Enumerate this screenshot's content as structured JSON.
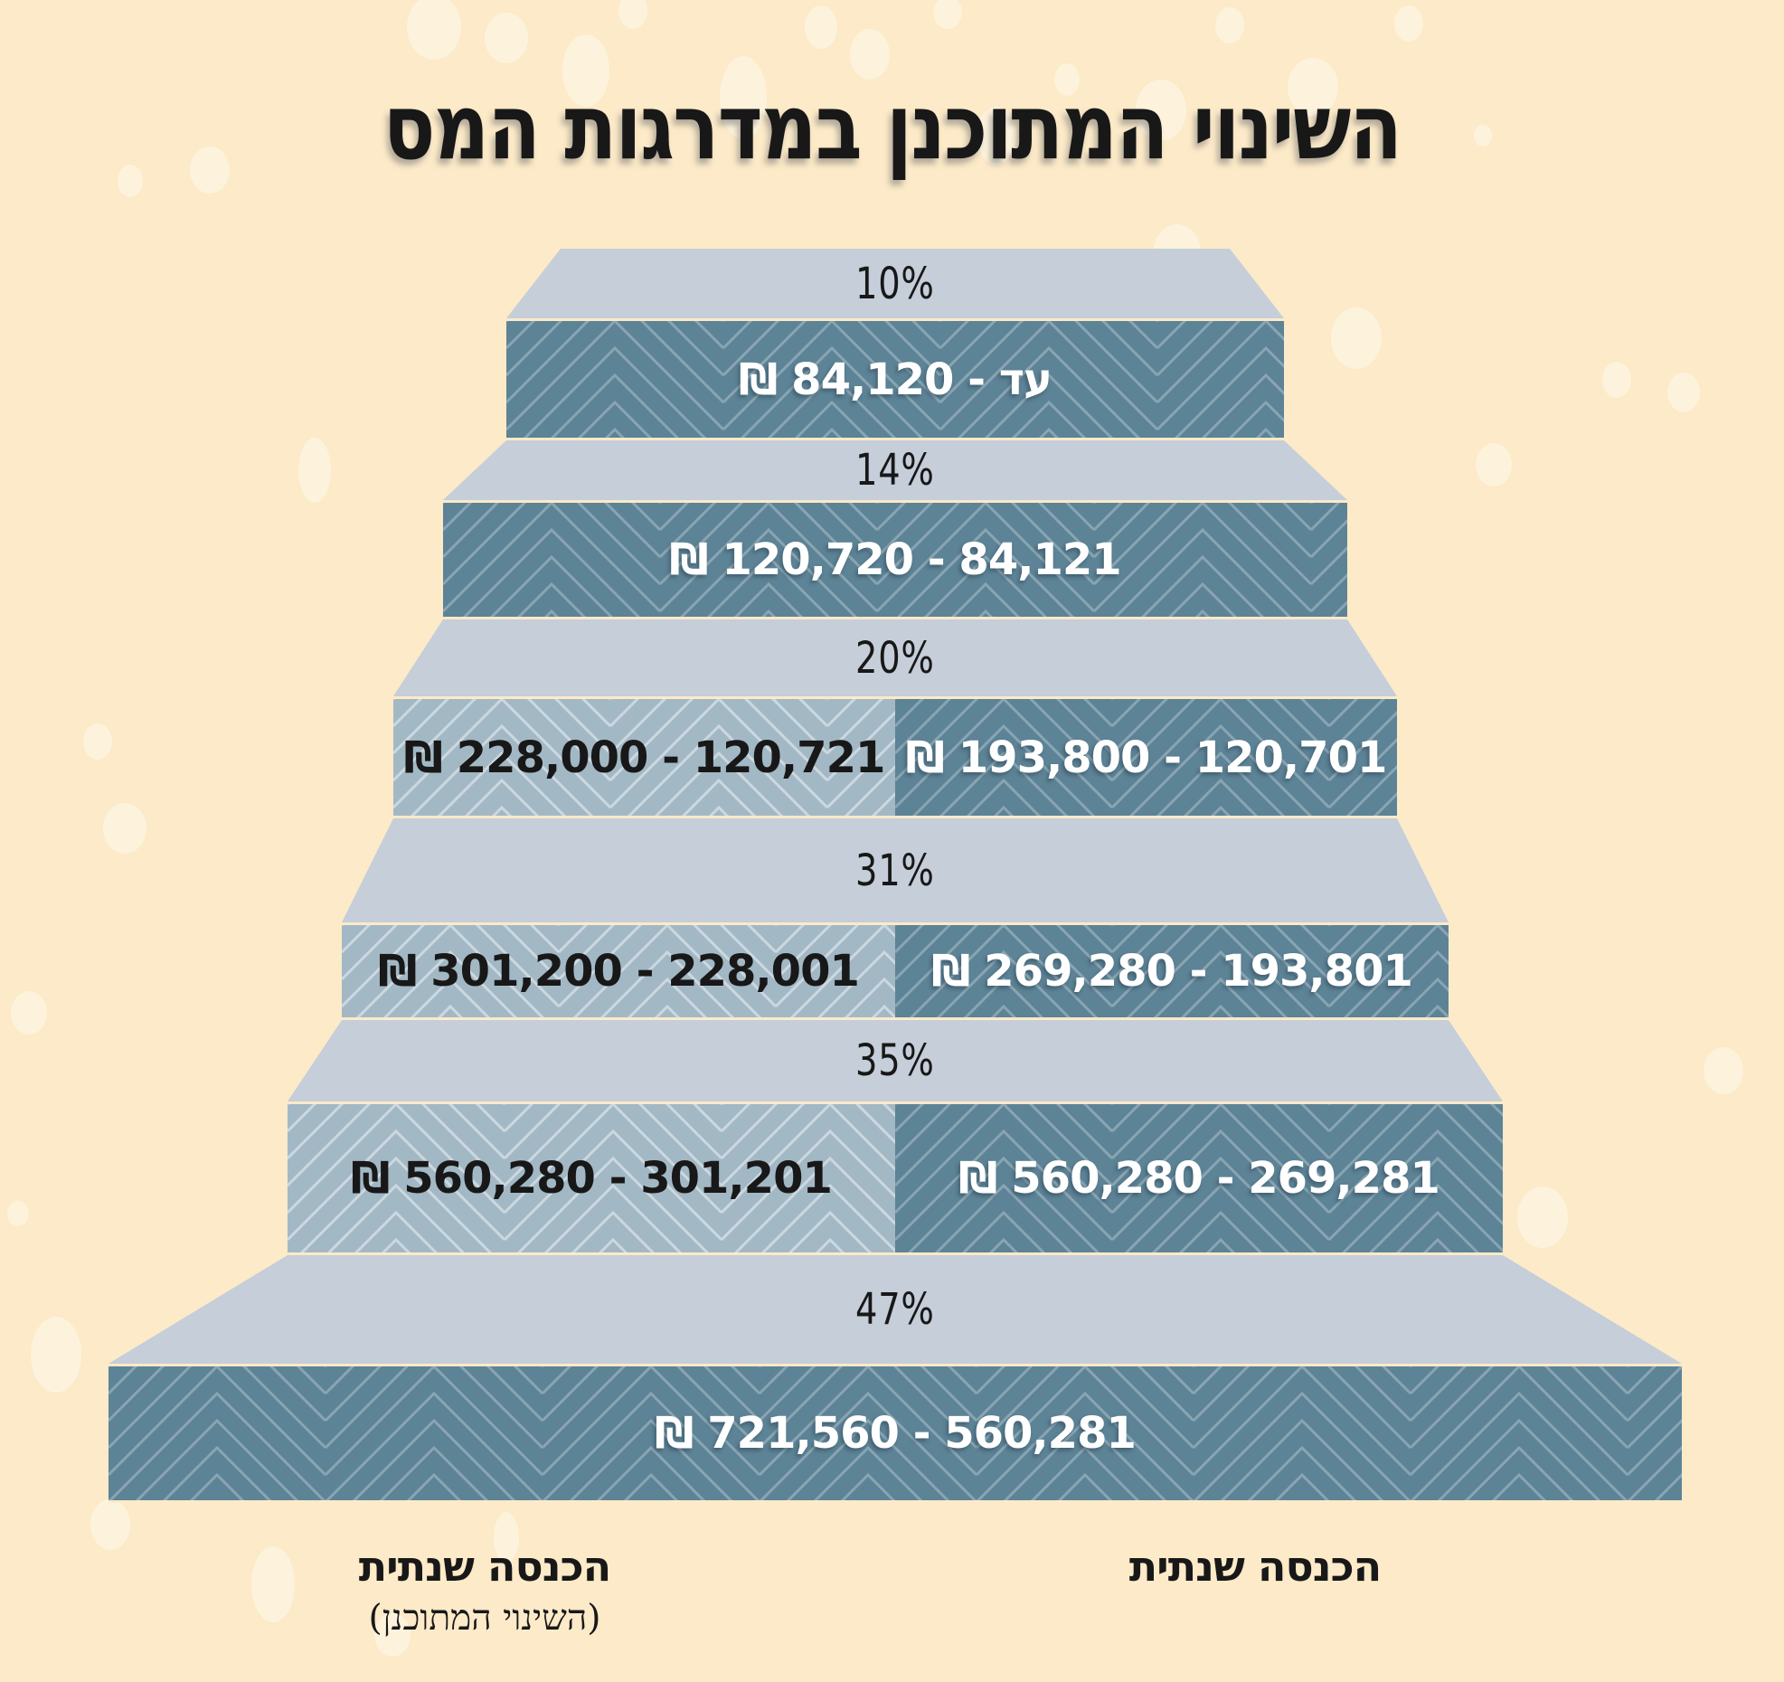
{
  "title": "השינוי המתוכנן במדרגות המס",
  "colors": {
    "background": "#FCEAC8",
    "dot": "#FDF3DC",
    "step_top": "#C5CED9",
    "face_current": "#5D8396",
    "face_planned": "#A3B8C5",
    "text_dark": "#181818",
    "text_light": "#FFFFFF"
  },
  "steps": [
    {
      "rate": "10%",
      "range": "עד - 84,120 ₪"
    },
    {
      "rate": "14%",
      "range": "84,121 - 120,720 ₪"
    },
    {
      "rate": "20%",
      "planned": "120,721 - 228,000 ₪",
      "current": "120,701 - 193,800 ₪"
    },
    {
      "rate": "31%",
      "planned": "228,001 - 301,200 ₪",
      "current": "193,801 - 269,280 ₪"
    },
    {
      "rate": "35%",
      "planned": "301,201 - 560,280 ₪",
      "current": "269,281 - 560,280 ₪"
    },
    {
      "rate": "47%",
      "range": "560,281 - 721,560 ₪"
    }
  ],
  "footer": {
    "current_label": "הכנסה שנתית",
    "planned_label": "הכנסה שנתית",
    "planned_sub": "(השינוי המתוכנן)"
  },
  "chart_data": {
    "type": "stepped-bracket-infographic",
    "title": "השינוי המתוכנן במדרגות המס",
    "currency": "₪",
    "legend": {
      "right_column": "הכנסה שנתית",
      "left_column": "הכנסה שנתית (השינוי המתוכנן)"
    },
    "brackets": [
      {
        "rate_percent": 10,
        "current_range_ils": [
          0,
          84120
        ],
        "planned_range_ils": [
          0,
          84120
        ],
        "label": "עד - 84,120 ₪"
      },
      {
        "rate_percent": 14,
        "current_range_ils": [
          84121,
          120720
        ],
        "planned_range_ils": [
          84121,
          120720
        ],
        "label": "84,121 - 120,720 ₪"
      },
      {
        "rate_percent": 20,
        "current_range_ils": [
          120701,
          193800
        ],
        "planned_range_ils": [
          120721,
          228000
        ]
      },
      {
        "rate_percent": 31,
        "current_range_ils": [
          193801,
          269280
        ],
        "planned_range_ils": [
          228001,
          301200
        ]
      },
      {
        "rate_percent": 35,
        "current_range_ils": [
          269281,
          560280
        ],
        "planned_range_ils": [
          301201,
          560280
        ]
      },
      {
        "rate_percent": 47,
        "current_range_ils": [
          560281,
          721560
        ],
        "planned_range_ils": [
          560281,
          721560
        ],
        "label": "560,281 - 721,560 ₪"
      }
    ]
  }
}
